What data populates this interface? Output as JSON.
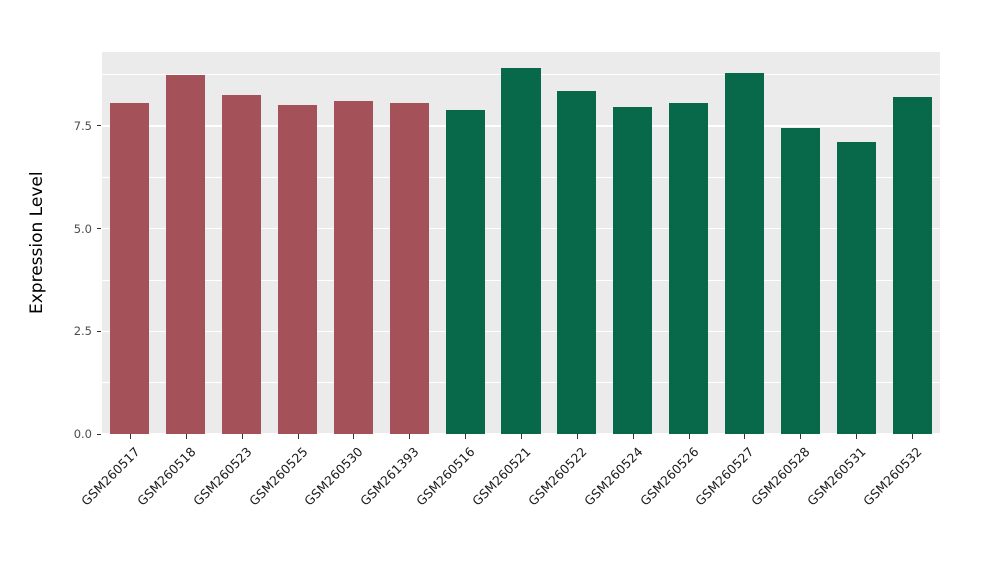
{
  "chart_data": {
    "type": "bar",
    "title": "",
    "xlabel": "",
    "ylabel": "Expression Level",
    "ylim": [
      0,
      9.3
    ],
    "yticks": [
      0.0,
      2.5,
      5.0,
      7.5
    ],
    "grid": "on",
    "legend": "none",
    "panel_background": "#EBEBEB",
    "grid_color": "#FFFFFF",
    "categories": [
      "GSM260517",
      "GSM260518",
      "GSM260523",
      "GSM260525",
      "GSM260530",
      "GSM261393",
      "GSM260516",
      "GSM260521",
      "GSM260522",
      "GSM260524",
      "GSM260526",
      "GSM260527",
      "GSM260528",
      "GSM260531",
      "GSM260532"
    ],
    "values": [
      8.05,
      8.75,
      8.25,
      8.0,
      8.1,
      8.05,
      7.9,
      8.9,
      8.35,
      7.95,
      8.05,
      8.8,
      7.45,
      7.1,
      8.2
    ],
    "groups": [
      "group1",
      "group1",
      "group1",
      "group1",
      "group1",
      "group1",
      "group2",
      "group2",
      "group2",
      "group2",
      "group2",
      "group2",
      "group2",
      "group2",
      "group2"
    ],
    "colors": {
      "group1": "#A4515A",
      "group2": "#07694A"
    }
  }
}
